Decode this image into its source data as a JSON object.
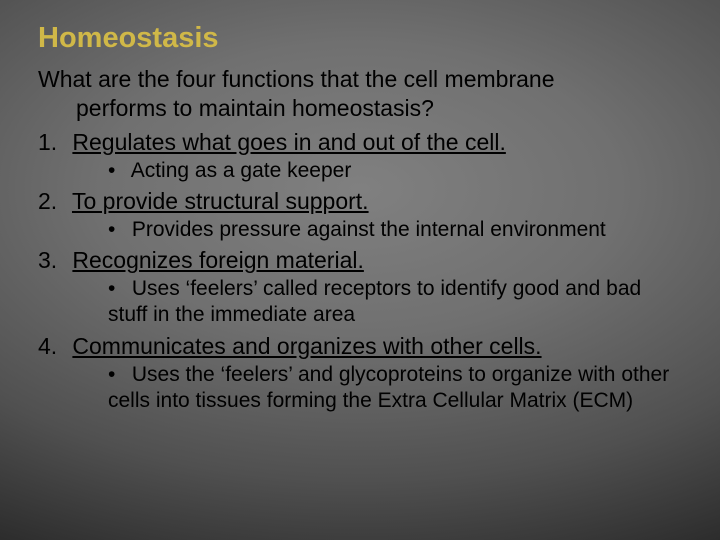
{
  "title": "Homeostasis",
  "question_line1": "What are the four functions that the cell membrane",
  "question_line2": "performs to maintain homeostasis?",
  "items": [
    {
      "num": "1.",
      "text": "Regulates what goes in and out of the cell.",
      "subs": [
        "Acting as a gate keeper"
      ]
    },
    {
      "num": "2.",
      "text": "To provide structural support.",
      "subs": [
        "Provides pressure against the internal environment"
      ]
    },
    {
      "num": "3.",
      "text": "Recognizes foreign material.",
      "subs": [
        "Uses ‘feelers’ called receptors to identify good and bad stuff in the immediate area"
      ]
    },
    {
      "num": "4.",
      "text": "Communicates and organizes with other cells.",
      "subs": [
        "Uses the ‘feelers’ and glycoproteins to organize with other cells into tissues forming the Extra Cellular Matrix (ECM)"
      ]
    }
  ],
  "colors": {
    "title": "#d0b848",
    "body_text": "#000000"
  },
  "typography": {
    "title_fontsize": 29,
    "body_fontsize": 23,
    "sub_fontsize": 21,
    "font_family": "Arial"
  }
}
